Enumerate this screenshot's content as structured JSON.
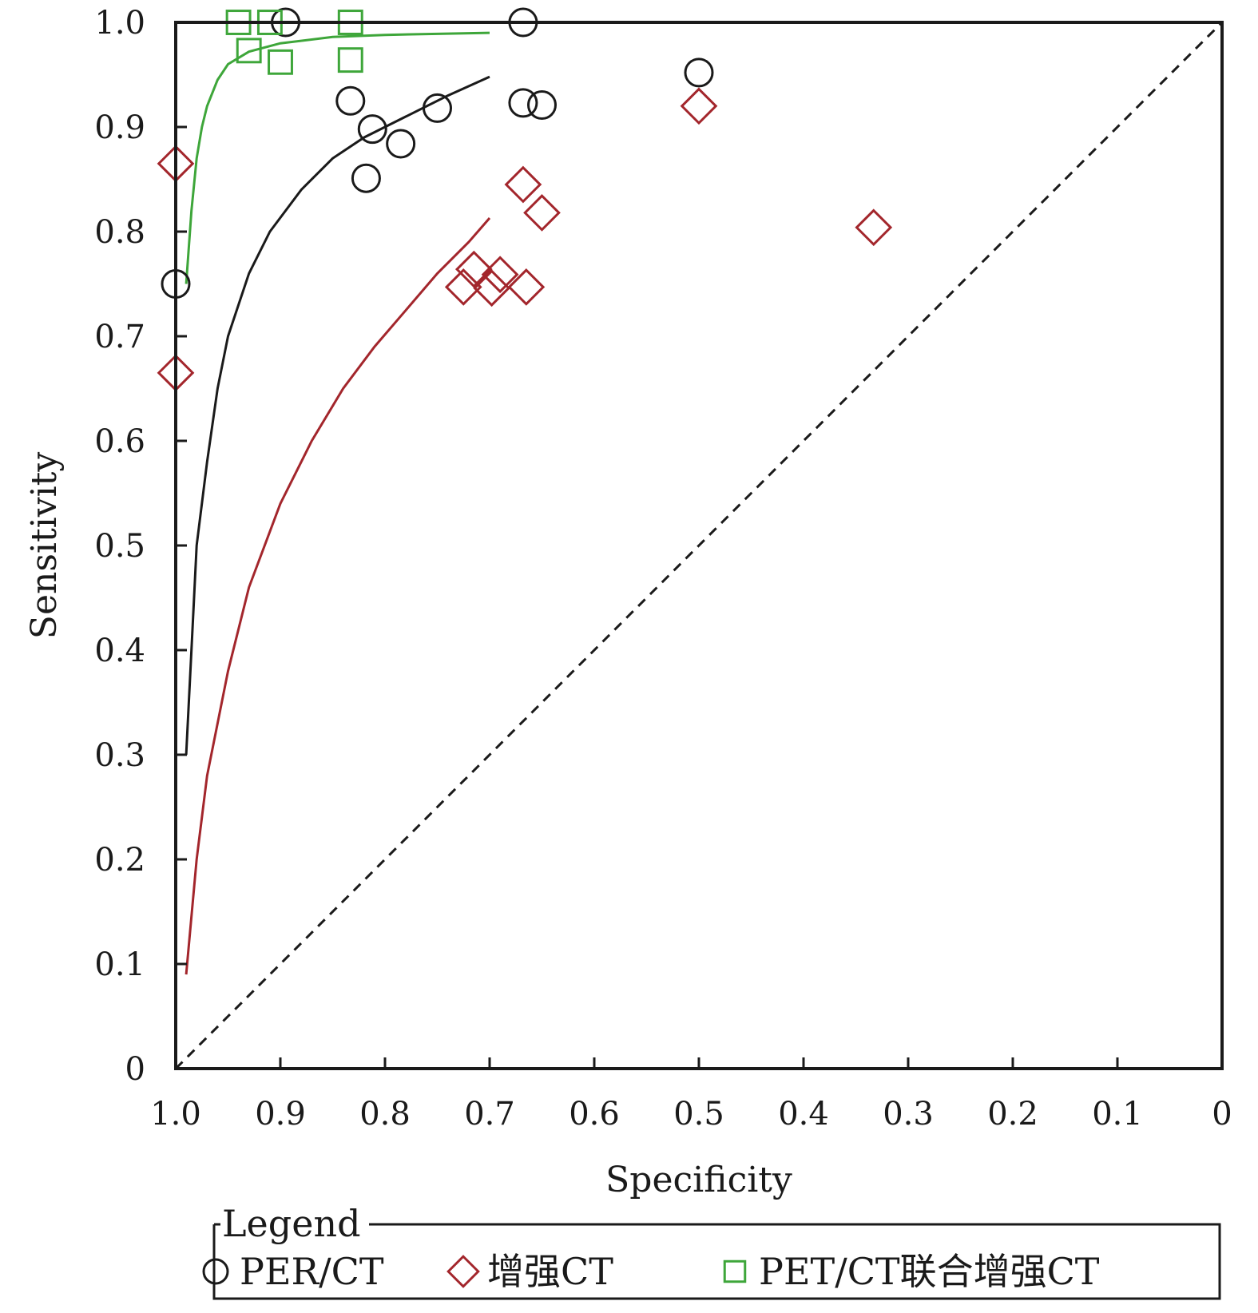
{
  "chart_data": {
    "type": "scatter",
    "title": "",
    "xlabel": "Specificity",
    "ylabel": "Sensitivity",
    "xlim": [
      1.0,
      0
    ],
    "ylim": [
      0,
      1.0
    ],
    "x_reversed": true,
    "x_ticks": [
      "1.0",
      "0.9",
      "0.8",
      "0.7",
      "0.6",
      "0.5",
      "0.4",
      "0.3",
      "0.2",
      "0.1",
      "0"
    ],
    "y_ticks": [
      "0",
      "0.1",
      "0.2",
      "0.3",
      "0.4",
      "0.5",
      "0.6",
      "0.7",
      "0.8",
      "0.9",
      "1.0"
    ],
    "x_tick_values": [
      1.0,
      0.9,
      0.8,
      0.7,
      0.6,
      0.5,
      0.4,
      0.3,
      0.2,
      0.1,
      0
    ],
    "y_tick_values": [
      0,
      0.1,
      0.2,
      0.3,
      0.4,
      0.5,
      0.6,
      0.7,
      0.8,
      0.9,
      1.0
    ],
    "grid": false,
    "diagonal_reference": true,
    "legend": {
      "title": "Legend",
      "placement": "bottom",
      "entries": [
        "PER/CT",
        "增强CT",
        "PET/CT联合增强CT"
      ]
    },
    "series": [
      {
        "name": "PER/CT",
        "marker": "circle",
        "color": "#1a1a1a",
        "points": [
          [
            0.895,
            1.0
          ],
          [
            0.668,
            1.0
          ],
          [
            0.5,
            0.952
          ],
          [
            0.833,
            0.925
          ],
          [
            0.668,
            0.923
          ],
          [
            0.65,
            0.921
          ],
          [
            0.75,
            0.918
          ],
          [
            0.812,
            0.898
          ],
          [
            0.785,
            0.884
          ],
          [
            0.818,
            0.851
          ],
          [
            1.0,
            0.75
          ]
        ],
        "curve": [
          [
            0.99,
            0.3
          ],
          [
            0.985,
            0.4
          ],
          [
            0.98,
            0.5
          ],
          [
            0.97,
            0.58
          ],
          [
            0.96,
            0.65
          ],
          [
            0.95,
            0.7
          ],
          [
            0.93,
            0.76
          ],
          [
            0.91,
            0.8
          ],
          [
            0.88,
            0.84
          ],
          [
            0.85,
            0.87
          ],
          [
            0.82,
            0.89
          ],
          [
            0.78,
            0.91
          ],
          [
            0.74,
            0.93
          ],
          [
            0.7,
            0.948
          ]
        ]
      },
      {
        "name": "增强CT",
        "marker": "diamond",
        "color": "#a3262c",
        "points": [
          [
            0.5,
            0.92
          ],
          [
            1.0,
            0.865
          ],
          [
            0.668,
            0.845
          ],
          [
            0.65,
            0.818
          ],
          [
            0.333,
            0.804
          ],
          [
            0.715,
            0.764
          ],
          [
            0.69,
            0.759
          ],
          [
            0.725,
            0.747
          ],
          [
            0.698,
            0.746
          ],
          [
            0.665,
            0.747
          ],
          [
            1.0,
            0.665
          ]
        ],
        "curve": [
          [
            0.99,
            0.09
          ],
          [
            0.98,
            0.2
          ],
          [
            0.97,
            0.28
          ],
          [
            0.95,
            0.38
          ],
          [
            0.93,
            0.46
          ],
          [
            0.9,
            0.54
          ],
          [
            0.87,
            0.6
          ],
          [
            0.84,
            0.65
          ],
          [
            0.81,
            0.69
          ],
          [
            0.78,
            0.725
          ],
          [
            0.75,
            0.76
          ],
          [
            0.72,
            0.79
          ],
          [
            0.7,
            0.813
          ]
        ]
      },
      {
        "name": "PET/CT联合增强CT",
        "marker": "square",
        "color": "#3ea63a",
        "points": [
          [
            0.94,
            1.0
          ],
          [
            0.91,
            1.0
          ],
          [
            0.833,
            1.0
          ],
          [
            0.93,
            0.973
          ],
          [
            0.9,
            0.962
          ],
          [
            0.833,
            0.964
          ]
        ],
        "curve": [
          [
            0.99,
            0.75
          ],
          [
            0.985,
            0.82
          ],
          [
            0.98,
            0.87
          ],
          [
            0.975,
            0.9
          ],
          [
            0.97,
            0.92
          ],
          [
            0.96,
            0.945
          ],
          [
            0.95,
            0.96
          ],
          [
            0.93,
            0.972
          ],
          [
            0.9,
            0.98
          ],
          [
            0.85,
            0.986
          ],
          [
            0.8,
            0.988
          ],
          [
            0.75,
            0.989
          ],
          [
            0.7,
            0.99
          ]
        ]
      }
    ]
  }
}
